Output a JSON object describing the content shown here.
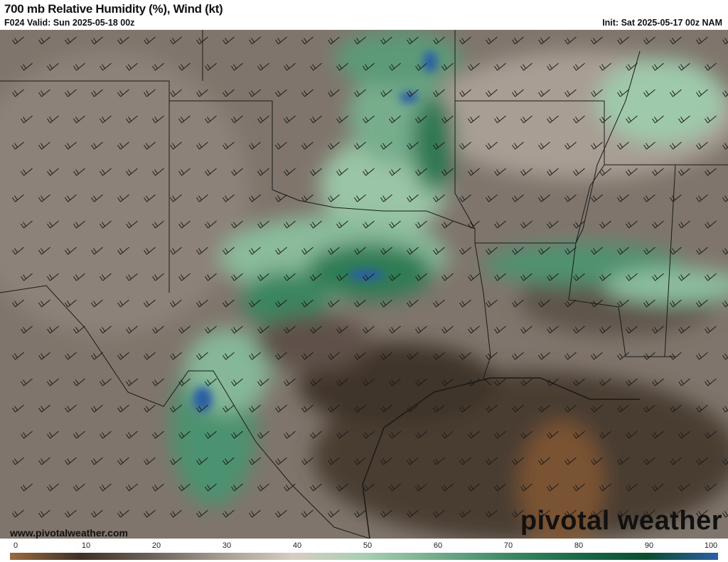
{
  "header": {
    "title": "700 mb Relative Humidity (%), Wind (kt)",
    "valid": "F024 Valid: Sun 2025-05-18 00z",
    "init": "Init: Sat 2025-05-17 00z NAM"
  },
  "footer": {
    "website": "www.pivotalweather.com",
    "logo": "pivotal weather"
  },
  "colorbar": {
    "ticks": [
      "0",
      "10",
      "20",
      "30",
      "40",
      "50",
      "60",
      "70",
      "80",
      "90",
      "100"
    ],
    "stops": [
      {
        "value": 0,
        "color": "#9a6a3f"
      },
      {
        "value": 10,
        "color": "#3e3128"
      },
      {
        "value": 20,
        "color": "#6d6259"
      },
      {
        "value": 30,
        "color": "#a79c92"
      },
      {
        "value": 40,
        "color": "#d6cdc3"
      },
      {
        "value": 50,
        "color": "#a9cfb3"
      },
      {
        "value": 60,
        "color": "#74ad8c"
      },
      {
        "value": 70,
        "color": "#3f8a67"
      },
      {
        "value": 80,
        "color": "#1b6a48"
      },
      {
        "value": 90,
        "color": "#0b4d30"
      },
      {
        "value": 100,
        "color": "#2a5fa4"
      }
    ]
  }
}
